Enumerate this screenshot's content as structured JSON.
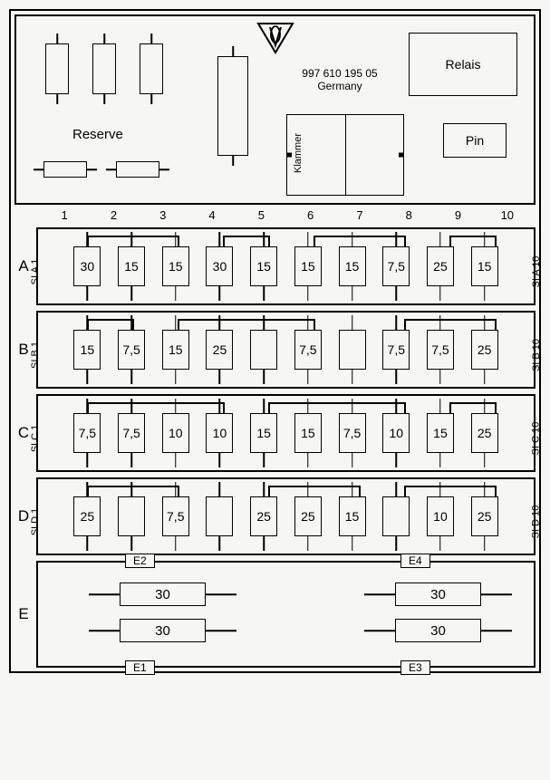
{
  "partNumber": "997 610 195 05",
  "country": "Germany",
  "topLabels": {
    "reserve": "Reserve",
    "relais": "Relais",
    "pin": "Pin",
    "klammer": "Klammer"
  },
  "columns": [
    "1",
    "2",
    "3",
    "4",
    "5",
    "6",
    "7",
    "8",
    "9",
    "10"
  ],
  "rows": {
    "A": {
      "left": "SI A 1",
      "right": "SI A 10",
      "fuses": [
        "30",
        "15",
        "15",
        "30",
        "15",
        "15",
        "15",
        "7,5",
        "25",
        "15"
      ],
      "bridges": [
        [
          0,
          2
        ],
        [
          3,
          4
        ],
        [
          5,
          7
        ],
        [
          8,
          9
        ]
      ]
    },
    "B": {
      "left": "SI B 1",
      "right": "SI B 10",
      "fuses": [
        "15",
        "7,5",
        "15",
        "25",
        "",
        "7,5",
        "",
        "7,5",
        "7,5",
        "25"
      ],
      "bridges": [
        [
          0,
          1
        ],
        [
          2,
          5
        ],
        [
          7,
          9
        ]
      ]
    },
    "C": {
      "left": "SI C 1",
      "right": "SI C 10",
      "fuses": [
        "7,5",
        "7,5",
        "10",
        "10",
        "15",
        "15",
        "7,5",
        "10",
        "15",
        "25"
      ],
      "bridges": [
        [
          0,
          3
        ],
        [
          4,
          7
        ],
        [
          8,
          9
        ]
      ]
    },
    "D": {
      "left": "SI D 1",
      "right": "SI D 10",
      "fuses": [
        "25",
        "",
        "7,5",
        "",
        "25",
        "25",
        "15",
        "",
        "10",
        "25"
      ],
      "bridges": [
        [
          0,
          2
        ],
        [
          4,
          6
        ],
        [
          7,
          9
        ]
      ]
    }
  },
  "rowE": {
    "labels": {
      "E1": "E1",
      "E2": "E2",
      "E3": "E3",
      "E4": "E4"
    },
    "values": [
      "30",
      "30",
      "30",
      "30"
    ]
  },
  "colors": {
    "stroke": "#000000",
    "bg": "#f6f6f4"
  }
}
